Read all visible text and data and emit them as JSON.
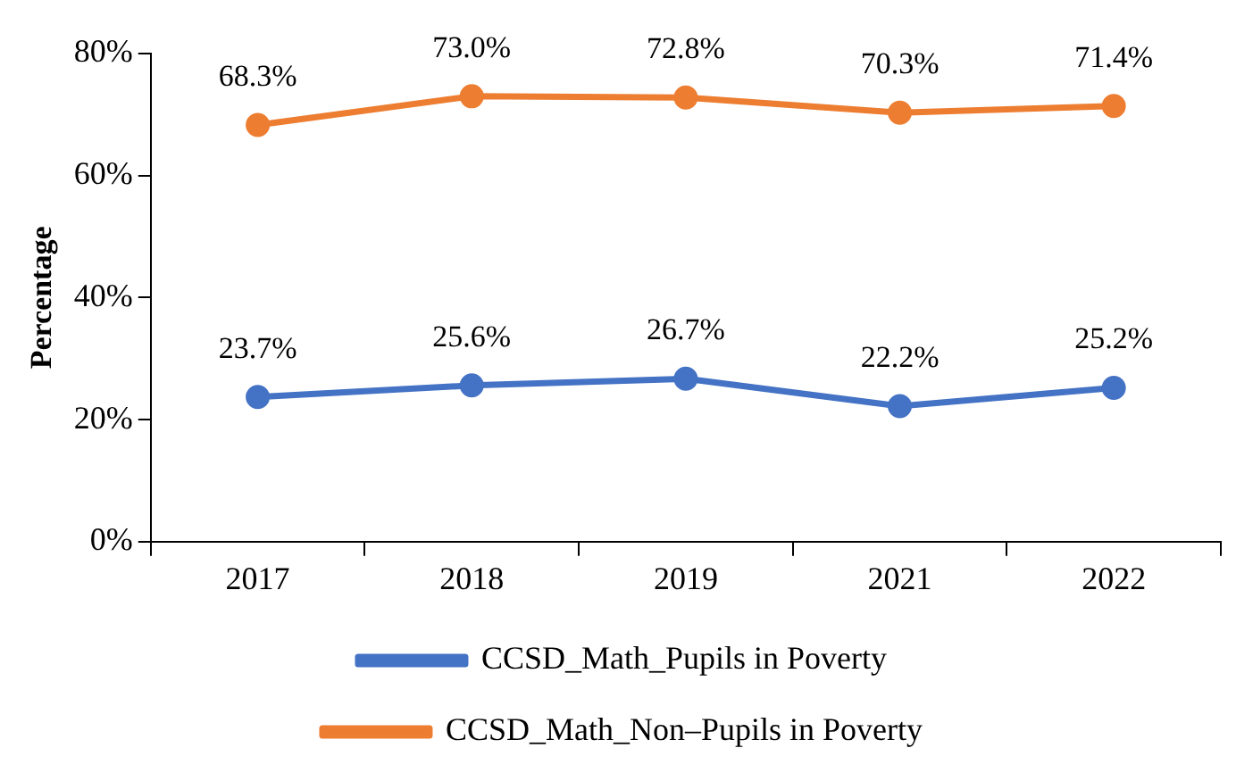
{
  "chart_data": {
    "type": "line",
    "ylabel": "Percentage",
    "categories": [
      "2017",
      "2018",
      "2019",
      "2021",
      "2022"
    ],
    "series": [
      {
        "name": "CCSD_Math_Pupils in Poverty",
        "color": "#4472c4",
        "values": [
          23.7,
          25.6,
          26.7,
          22.2,
          25.2
        ],
        "value_labels": [
          "23.7%",
          "25.6%",
          "26.7%",
          "22.2%",
          "25.2%"
        ]
      },
      {
        "name": "CCSD_Math_Non–Pupils in Poverty",
        "color": "#ed7d31",
        "values": [
          68.3,
          73.0,
          72.8,
          70.3,
          71.4
        ],
        "value_labels": [
          "68.3%",
          "73.0%",
          "72.8%",
          "70.3%",
          "71.4%"
        ]
      }
    ],
    "ylim": [
      0,
      80
    ],
    "yticks": [
      {
        "value": 0,
        "label": "0%"
      },
      {
        "value": 20,
        "label": "20%"
      },
      {
        "value": 40,
        "label": "40%"
      },
      {
        "value": 60,
        "label": "60%"
      },
      {
        "value": 80,
        "label": "80%"
      }
    ],
    "grid": false,
    "legend": "bottom",
    "marker": "circle",
    "line_style": "solid"
  }
}
